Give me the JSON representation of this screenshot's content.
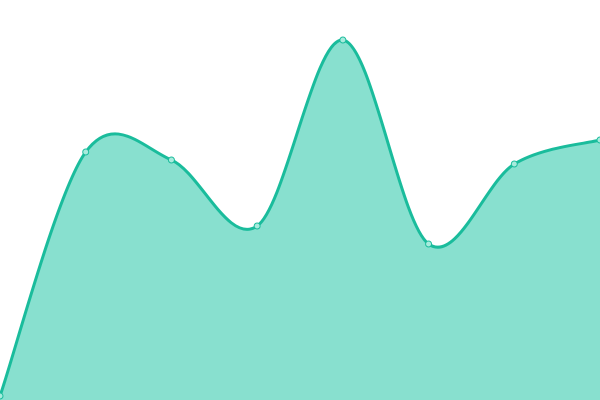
{
  "chart_data": {
    "type": "area",
    "x": [
      0,
      1,
      2,
      3,
      4,
      5,
      6,
      7
    ],
    "values": [
      1,
      62,
      60,
      43.5,
      90,
      39,
      59,
      65
    ],
    "ylim": [
      0,
      100
    ],
    "smooth": true,
    "grid": false,
    "axes_visible": false,
    "colors": {
      "line": "#1abc9c",
      "fill": "#88e0cf",
      "point_fill": "#a8ebdd"
    }
  }
}
